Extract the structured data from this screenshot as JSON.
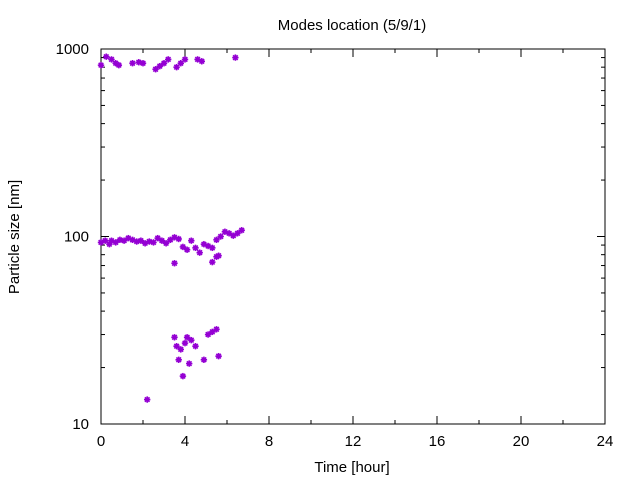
{
  "chart_data": {
    "type": "scatter",
    "title": "Modes location (5/9/1)",
    "xlabel": "Time [hour]",
    "ylabel": "Particle size [nm]",
    "xlim": [
      0,
      24
    ],
    "ylim": [
      10,
      1000
    ],
    "yscale": "log",
    "x_ticks": [
      "0",
      "4",
      "8",
      "12",
      "16",
      "20",
      "24"
    ],
    "y_ticks": [
      "10",
      "100",
      "1000"
    ],
    "grid": false,
    "marker_color": "#9400d3",
    "series": [
      {
        "points": [
          [
            0.0,
            820
          ],
          [
            0.25,
            910
          ],
          [
            0.5,
            880
          ],
          [
            0.7,
            840
          ],
          [
            0.85,
            820
          ],
          [
            1.5,
            840
          ],
          [
            1.8,
            850
          ],
          [
            2.0,
            840
          ],
          [
            2.6,
            780
          ],
          [
            2.8,
            810
          ],
          [
            3.0,
            840
          ],
          [
            3.2,
            880
          ],
          [
            3.6,
            800
          ],
          [
            3.8,
            840
          ],
          [
            4.0,
            880
          ],
          [
            4.6,
            880
          ],
          [
            4.8,
            860
          ],
          [
            6.4,
            900
          ],
          [
            0.0,
            93
          ],
          [
            0.2,
            95
          ],
          [
            0.4,
            91
          ],
          [
            0.5,
            95
          ],
          [
            0.7,
            93
          ],
          [
            0.9,
            96
          ],
          [
            1.1,
            95
          ],
          [
            1.3,
            98
          ],
          [
            1.5,
            96
          ],
          [
            1.7,
            94
          ],
          [
            1.9,
            95
          ],
          [
            2.1,
            92
          ],
          [
            2.3,
            94
          ],
          [
            2.5,
            93
          ],
          [
            2.7,
            98
          ],
          [
            2.9,
            95
          ],
          [
            3.1,
            92
          ],
          [
            3.3,
            96
          ],
          [
            3.5,
            99
          ],
          [
            3.7,
            97
          ],
          [
            3.9,
            88
          ],
          [
            4.1,
            85
          ],
          [
            4.3,
            95
          ],
          [
            4.5,
            87
          ],
          [
            4.7,
            82
          ],
          [
            4.9,
            91
          ],
          [
            5.1,
            89
          ],
          [
            5.3,
            87
          ],
          [
            5.5,
            96
          ],
          [
            5.7,
            100
          ],
          [
            5.9,
            106
          ],
          [
            6.1,
            104
          ],
          [
            6.3,
            101
          ],
          [
            6.5,
            104
          ],
          [
            6.7,
            108
          ],
          [
            3.5,
            72
          ],
          [
            5.3,
            73
          ],
          [
            5.5,
            78
          ],
          [
            5.6,
            79
          ],
          [
            3.5,
            29
          ],
          [
            3.6,
            26
          ],
          [
            3.7,
            22
          ],
          [
            3.8,
            25
          ],
          [
            3.9,
            18
          ],
          [
            4.0,
            27
          ],
          [
            4.1,
            29
          ],
          [
            4.2,
            21
          ],
          [
            4.3,
            28
          ],
          [
            4.5,
            26
          ],
          [
            4.9,
            22
          ],
          [
            5.1,
            30
          ],
          [
            5.3,
            31
          ],
          [
            5.5,
            32
          ],
          [
            5.6,
            23
          ],
          [
            2.2,
            13.5
          ]
        ]
      }
    ]
  }
}
